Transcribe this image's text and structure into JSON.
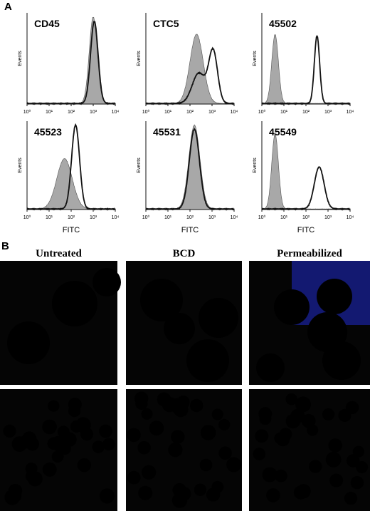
{
  "panel_a": {
    "label": "A",
    "ticks": [
      "10⁰",
      "10¹",
      "10²",
      "10³",
      "10⁴"
    ],
    "plots": [
      {
        "title": "CD45",
        "y_label": "Events"
      },
      {
        "title": "CTC5",
        "y_label": "Events"
      },
      {
        "title": "45502",
        "y_label": "Events"
      },
      {
        "title": "45523",
        "y_label": "Events",
        "x_label": "FITC"
      },
      {
        "title": "45531",
        "y_label": "Events",
        "x_label": "FITC"
      },
      {
        "title": "45549",
        "y_label": "Events",
        "x_label": "FITC"
      }
    ]
  },
  "panel_b": {
    "label": "B",
    "columns": [
      "Untreated",
      "BCD",
      "Permeabilized"
    ]
  }
}
